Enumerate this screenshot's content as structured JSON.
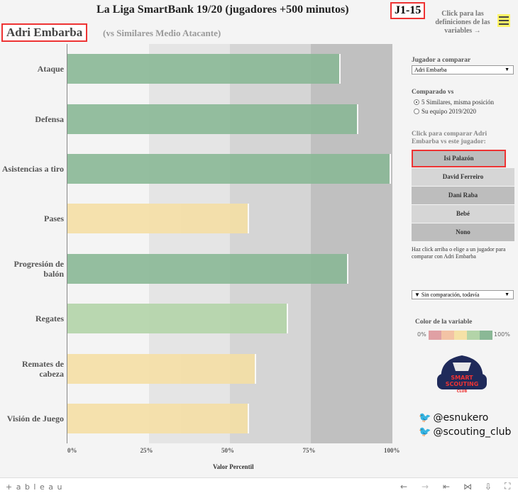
{
  "header": {
    "title": "La Liga SmartBank 19/20 (jugadores +500 minutos)",
    "round": "J1-15",
    "player": "Adri Embarba",
    "subtitle": "(vs Similares Medio Atacante)",
    "definitions": "Click para las definiciones de las variables →"
  },
  "chart_data": {
    "type": "bar",
    "orientation": "horizontal",
    "categories": [
      "Ataque",
      "Defensa",
      "Asistencias a tiro",
      "Pases",
      "Progresión de balón",
      "Regates",
      "Remates de cabeza",
      "Visión de Juego"
    ],
    "values": [
      84,
      89.5,
      99.5,
      56,
      86.5,
      68,
      58,
      56
    ],
    "colors": [
      "#8ab896",
      "#8ab896",
      "#8ab896",
      "#f5dfa5",
      "#8ab896",
      "#b3d4a8",
      "#f5dfa5",
      "#f5dfa5"
    ],
    "xlabel": "Valor Percentil",
    "xticks": [
      "0%",
      "25%",
      "50%",
      "75%",
      "100%"
    ],
    "xlim": [
      0,
      100
    ]
  },
  "sidebar": {
    "compare_label": "Jugador a comparar",
    "compare_value": "Adri Embarba",
    "compared_vs": "Comparado vs",
    "options": [
      "5 Similares, misma posición",
      "Su equipo 2019/2020"
    ],
    "click_label": "Click para comparar Adri Embarba vs este jugador:",
    "players": [
      "Isi Palazón",
      "David Ferreiro",
      "Dani Raba",
      "Bebé",
      "Nono"
    ],
    "hint": "Haz click arriba o elige a un jugador para comparar con Adri Embarba",
    "comparison_value": "▼ Sin comparación, todavía",
    "color_title": "Color de la variable",
    "legend_min": "0%",
    "legend_max": "100%",
    "legend_colors": [
      "#e0a0a4",
      "#f3c3a5",
      "#f5e1a6",
      "#b3d4a8",
      "#8ab896"
    ],
    "logo": "SMART SCOUTING CLUB",
    "twitter": [
      "@esnukero",
      "@scouting_club"
    ]
  },
  "footer": {
    "brand": "+ a b l e a u",
    "icons": [
      "←",
      "→",
      "⇤",
      "⋈",
      "⇩",
      "⛶"
    ]
  }
}
